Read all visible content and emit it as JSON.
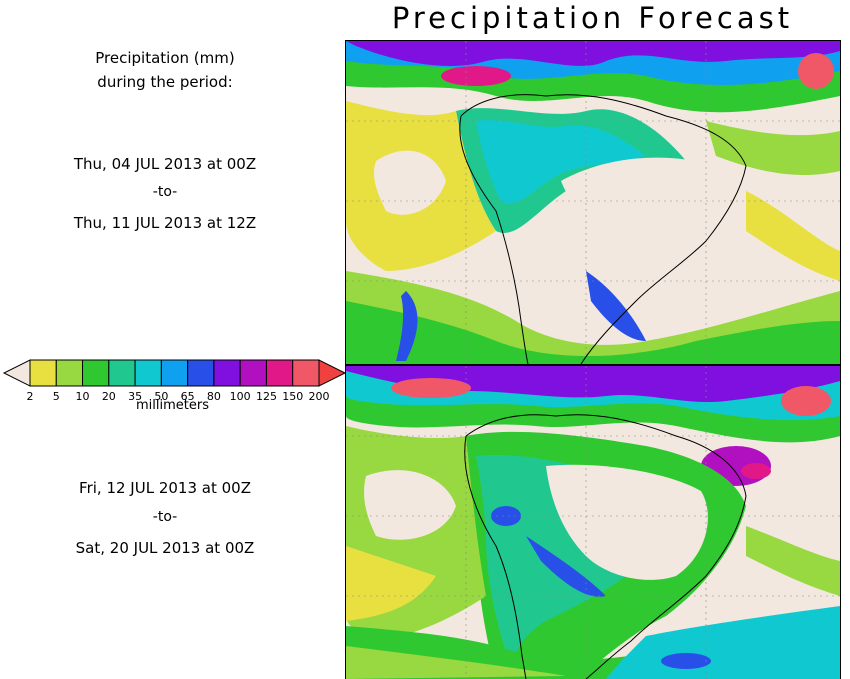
{
  "title": "Precipitation Forecast",
  "period_label": {
    "line1": "Precipitation (mm)",
    "line2": "during the period:"
  },
  "period1": {
    "start": "Thu, 04 JUL 2013 at 00Z",
    "to": "-to-",
    "end": "Thu, 11 JUL 2013 at 12Z"
  },
  "period2": {
    "start": "Fri, 12 JUL 2013 at 00Z",
    "to": "-to-",
    "end": "Sat, 20 JUL 2013 at 00Z"
  },
  "colorbar": {
    "caption": "millimeters",
    "ticks": [
      "2",
      "5",
      "10",
      "20",
      "35",
      "50",
      "65",
      "80",
      "100",
      "125",
      "150",
      "200"
    ],
    "colors": [
      "#e8e040",
      "#98d840",
      "#30c830",
      "#20c890",
      "#10c8d0",
      "#10a0f0",
      "#2850e8",
      "#8010e0",
      "#b010c0",
      "#e01888",
      "#f05868"
    ],
    "under_color": "#f2e8e0",
    "over_color": "#f04040"
  },
  "maps": {
    "top_name": "precipitation-map-period-1",
    "bottom_name": "precipitation-map-period-2"
  }
}
